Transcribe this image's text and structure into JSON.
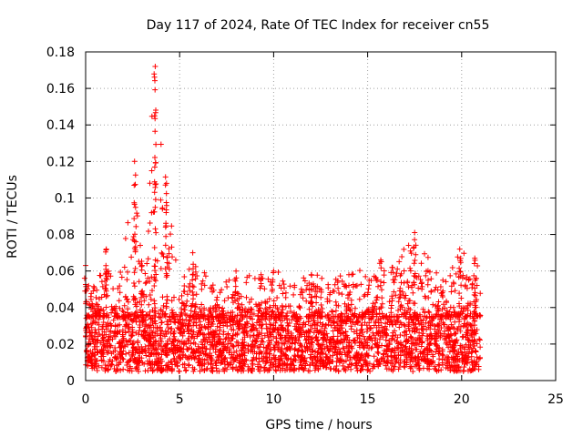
{
  "chart_data": {
    "type": "scatter",
    "title": "Day 117 of 2024, Rate Of TEC Index for receiver cn55",
    "xlabel": "GPS time / hours",
    "ylabel": "ROTI / TECUs",
    "xlim": [
      0,
      25
    ],
    "ylim": [
      0,
      0.18
    ],
    "xticks": [
      0,
      5,
      10,
      15,
      20,
      25
    ],
    "xtick_labels": [
      "0",
      "5",
      "10",
      "15",
      "20",
      "25"
    ],
    "yticks": [
      0,
      0.02,
      0.04,
      0.06,
      0.08,
      0.1,
      0.12,
      0.14,
      0.16,
      0.18
    ],
    "ytick_labels": [
      "0",
      "0.02",
      "0.04",
      "0.06",
      "0.08",
      "0.1",
      "0.12",
      "0.14",
      "0.16",
      "0.18"
    ],
    "grid": true,
    "marker": "+",
    "color": "#ff0000",
    "series": [
      {
        "name": "ROTI",
        "data_extent_hours": [
          0,
          21
        ],
        "typical_range": [
          0.005,
          0.035
        ],
        "envelope": [
          {
            "x": 0.0,
            "ymax": 0.063
          },
          {
            "x": 0.5,
            "ymax": 0.05
          },
          {
            "x": 1.1,
            "ymax": 0.072
          },
          {
            "x": 1.6,
            "ymax": 0.045
          },
          {
            "x": 2.6,
            "ymax": 0.12
          },
          {
            "x": 3.0,
            "ymax": 0.063
          },
          {
            "x": 3.7,
            "ymax": 0.172
          },
          {
            "x": 4.3,
            "ymax": 0.108
          },
          {
            "x": 5.0,
            "ymax": 0.05
          },
          {
            "x": 5.7,
            "ymax": 0.07
          },
          {
            "x": 7.0,
            "ymax": 0.05
          },
          {
            "x": 8.0,
            "ymax": 0.06
          },
          {
            "x": 10.0,
            "ymax": 0.06
          },
          {
            "x": 12.0,
            "ymax": 0.058
          },
          {
            "x": 14.0,
            "ymax": 0.058
          },
          {
            "x": 15.7,
            "ymax": 0.066
          },
          {
            "x": 16.3,
            "ymax": 0.062
          },
          {
            "x": 17.5,
            "ymax": 0.081
          },
          {
            "x": 19.0,
            "ymax": 0.055
          },
          {
            "x": 19.9,
            "ymax": 0.072
          },
          {
            "x": 20.7,
            "ymax": 0.067
          }
        ]
      }
    ]
  }
}
